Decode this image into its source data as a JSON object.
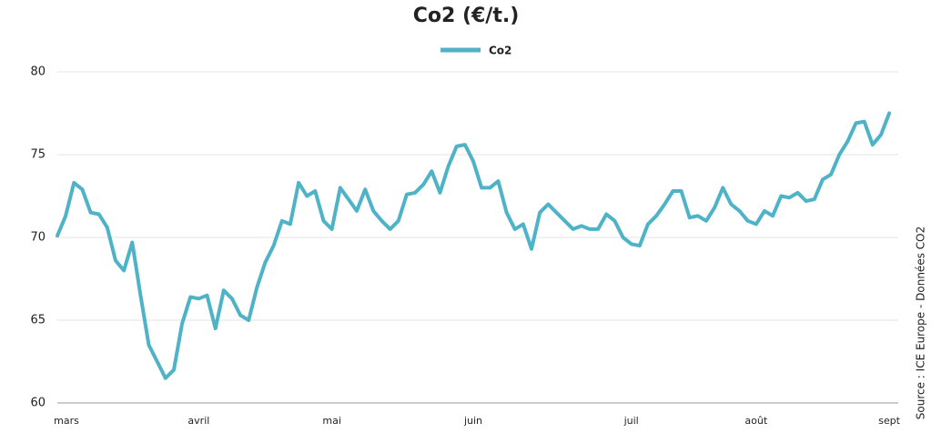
{
  "chart_data": {
    "type": "line",
    "title": "Co2 (€/t.)",
    "source": "Source : ICE Europe - Données CO2",
    "categories": [
      "mars",
      null,
      null,
      null,
      null,
      null,
      null,
      null,
      null,
      null,
      null,
      null,
      null,
      null,
      null,
      null,
      null,
      "avril",
      null,
      null,
      null,
      null,
      null,
      null,
      null,
      null,
      null,
      null,
      null,
      null,
      null,
      null,
      null,
      "mai",
      null,
      null,
      null,
      null,
      null,
      null,
      null,
      null,
      null,
      null,
      null,
      null,
      null,
      null,
      null,
      null,
      "juin",
      null,
      null,
      null,
      null,
      null,
      null,
      null,
      null,
      null,
      null,
      null,
      null,
      null,
      null,
      null,
      null,
      null,
      null,
      "juil",
      null,
      null,
      null,
      null,
      null,
      null,
      null,
      null,
      null,
      null,
      null,
      null,
      null,
      null,
      "août",
      null,
      null,
      null,
      null,
      null,
      null,
      null,
      null,
      null,
      null,
      null,
      null,
      null,
      null,
      null,
      "sept"
    ],
    "series": [
      {
        "name": "Co2",
        "color": "#4fb3c8",
        "values": [
          70.1,
          71.3,
          73.3,
          72.9,
          71.5,
          71.4,
          70.6,
          68.6,
          68.0,
          69.7,
          66.5,
          63.5,
          62.5,
          61.5,
          62.0,
          64.8,
          66.4,
          66.3,
          66.5,
          64.5,
          66.8,
          66.3,
          65.3,
          65.0,
          67.0,
          68.5,
          69.5,
          71.0,
          70.8,
          73.3,
          72.5,
          72.8,
          71.0,
          70.5,
          73.0,
          72.3,
          71.6,
          72.9,
          71.6,
          71.0,
          70.5,
          71.0,
          72.6,
          72.7,
          73.2,
          74.0,
          72.7,
          74.3,
          75.5,
          75.6,
          74.6,
          73.0,
          73.0,
          73.4,
          71.5,
          70.5,
          70.8,
          69.3,
          71.5,
          72.0,
          71.5,
          71.0,
          70.5,
          70.7,
          70.5,
          70.5,
          71.4,
          71.0,
          70.0,
          69.6,
          69.5,
          70.8,
          71.3,
          72.0,
          72.8,
          72.8,
          71.2,
          71.3,
          71.0,
          71.8,
          73.0,
          72.0,
          71.6,
          71.0,
          70.8,
          71.6,
          71.3,
          72.5,
          72.4,
          72.7,
          72.2,
          72.3,
          73.5,
          73.8,
          75.0,
          75.8,
          76.9,
          77.0,
          75.6,
          76.2,
          77.5
        ]
      }
    ],
    "ylim": [
      60,
      80
    ],
    "yticks": [
      60,
      65,
      70,
      75,
      80
    ],
    "grid": true
  }
}
